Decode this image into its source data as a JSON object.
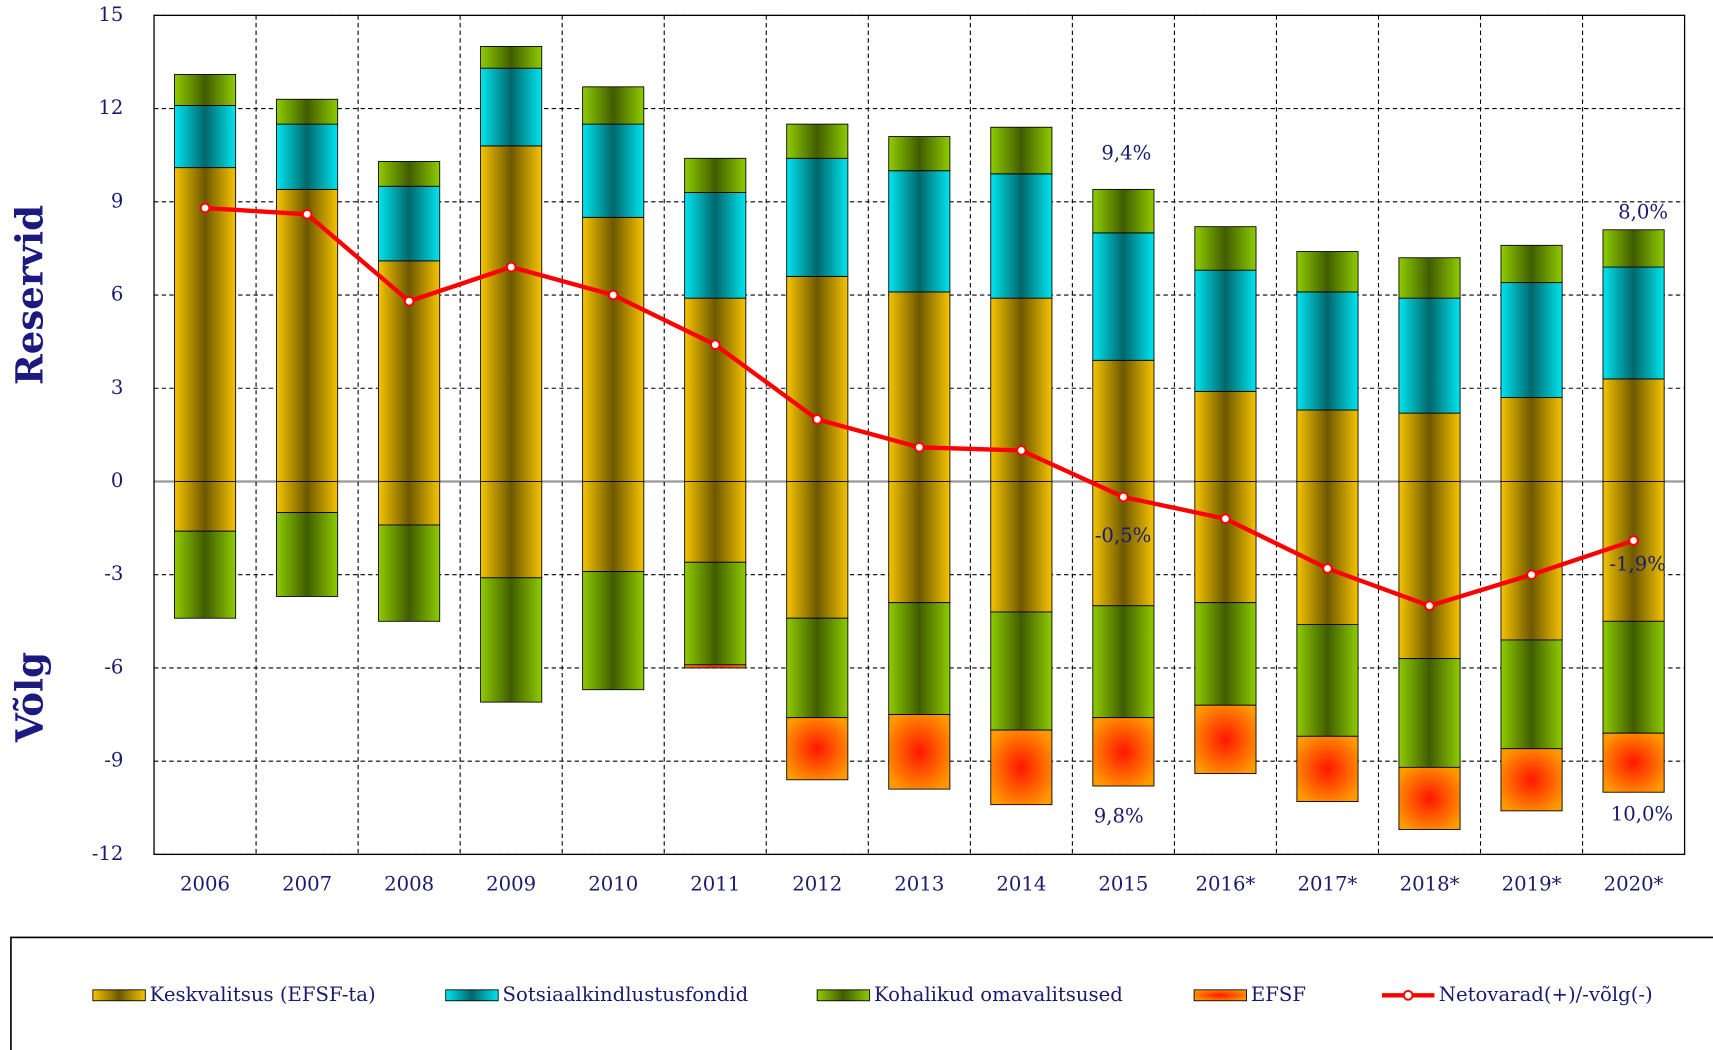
{
  "chart_data": {
    "type": "bar",
    "y_axis_labels": [
      "Reservid",
      "Võlg"
    ],
    "categories": [
      "2006",
      "2007",
      "2008",
      "2009",
      "2010",
      "2011",
      "2012",
      "2013",
      "2014",
      "2015",
      "2016*",
      "2017*",
      "2018*",
      "2019*",
      "2020*"
    ],
    "series": [
      {
        "name": "Keskvalitsus (EFSF-ta)",
        "color": "#f5c400",
        "assets": [
          10.1,
          9.4,
          7.1,
          10.8,
          8.5,
          5.9,
          6.6,
          6.1,
          5.9,
          3.9,
          2.9,
          2.3,
          2.2,
          2.7,
          3.3
        ],
        "debt": [
          -1.6,
          -1.0,
          -1.4,
          -3.1,
          -2.9,
          -2.6,
          -4.4,
          -3.9,
          -4.2,
          -4.0,
          -3.9,
          -4.6,
          -5.7,
          -5.1,
          -4.5
        ]
      },
      {
        "name": "Sotsiaalkindlustusfondid",
        "color": "#00e5ef",
        "assets": [
          2.0,
          2.1,
          2.4,
          2.5,
          3.0,
          3.4,
          3.8,
          3.9,
          4.0,
          4.1,
          3.9,
          3.8,
          3.7,
          3.7,
          3.6
        ],
        "debt": [
          0,
          0,
          0,
          0,
          0,
          0,
          0,
          0,
          0,
          0,
          0,
          0,
          0,
          0,
          0
        ]
      },
      {
        "name": "Kohalikud omavalitsused",
        "color": "#8fcc00",
        "assets": [
          1.0,
          0.8,
          0.8,
          0.7,
          1.2,
          1.1,
          1.1,
          1.1,
          1.5,
          1.4,
          1.4,
          1.3,
          1.3,
          1.2,
          1.2
        ],
        "debt": [
          -2.8,
          -2.7,
          -3.1,
          -4.0,
          -3.8,
          -3.3,
          -3.2,
          -3.6,
          -3.8,
          -3.6,
          -3.3,
          -3.6,
          -3.5,
          -3.5,
          -3.6
        ]
      },
      {
        "name": "EFSF",
        "color": "#ff9a00",
        "assets": [
          0,
          0,
          0,
          0,
          0,
          0,
          0,
          0,
          0,
          0,
          0,
          0,
          0,
          0,
          0
        ],
        "debt": [
          0,
          0,
          0,
          0,
          0,
          -0.1,
          -2.0,
          -2.4,
          -2.4,
          -2.2,
          -2.2,
          -2.1,
          -2.0,
          -2.0,
          -1.9
        ]
      },
      {
        "name": "Netovarad(+)/-võlg(-)",
        "color": "#ff0000",
        "type": "line",
        "values": [
          8.8,
          8.6,
          5.8,
          6.9,
          6.0,
          4.4,
          2.0,
          1.1,
          1.0,
          -0.5,
          -1.2,
          -2.8,
          -4.0,
          -3.0,
          -1.9
        ]
      }
    ],
    "annotations": [
      "9,4%",
      "-0,5%",
      "9,8%",
      "8,0%",
      "-1,9%",
      "10,0%"
    ],
    "ylim": [
      -12,
      15
    ],
    "yticks": [
      -12,
      -9,
      -6,
      -3,
      0,
      3,
      6,
      9,
      12,
      15
    ],
    "grid": true,
    "legend": "bottom"
  }
}
